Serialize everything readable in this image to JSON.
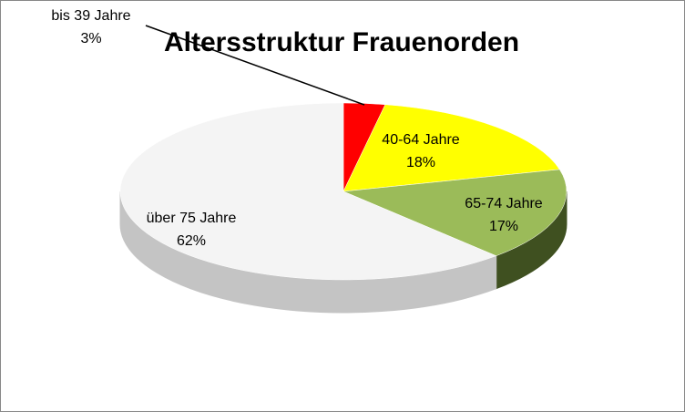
{
  "chart_data": {
    "type": "pie",
    "title": "Altersstruktur Frauenorden",
    "categories": [
      "bis 39 Jahre",
      "40-64 Jahre",
      "65-74 Jahre",
      "über 75 Jahre"
    ],
    "values": [
      3,
      18,
      17,
      62
    ],
    "value_labels": [
      "3%",
      "18%",
      "17%",
      "62%"
    ],
    "colors": [
      "#ff0000",
      "#ffff00",
      "#9bbb59",
      "#f4f4f4"
    ],
    "side_colors": [
      "#b00000",
      "#b3b300",
      "#3f5020",
      "#c4c4c4"
    ]
  }
}
